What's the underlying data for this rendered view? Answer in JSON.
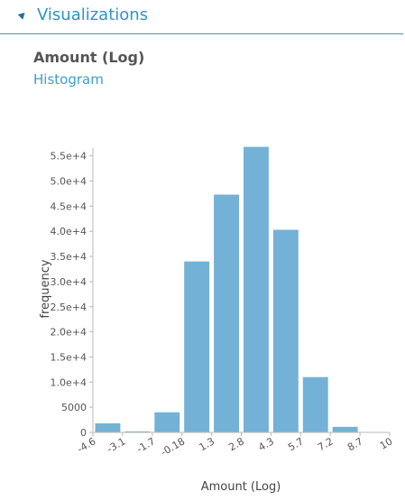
{
  "header": {
    "title": "Visualizations",
    "collapse_icon": "triangle-collapse-icon"
  },
  "chart_heading": "Amount (Log)",
  "chart_subheading": "Histogram",
  "colors": {
    "accent": "#2c94c8",
    "bar": "#73b2d6",
    "header_rule": "#3a97c9"
  },
  "chart_data": {
    "type": "bar",
    "xlabel": "Amount (Log)",
    "ylabel": "frequency",
    "ylim": [
      0,
      57000
    ],
    "y_ticks": [
      {
        "value": 0,
        "label": "0"
      },
      {
        "value": 5000,
        "label": "5000"
      },
      {
        "value": 10000,
        "label": "1.0e+4"
      },
      {
        "value": 15000,
        "label": "1.5e+4"
      },
      {
        "value": 20000,
        "label": "2.0e+4"
      },
      {
        "value": 25000,
        "label": "2.5e+4"
      },
      {
        "value": 30000,
        "label": "3.0e+4"
      },
      {
        "value": 35000,
        "label": "3.5e+4"
      },
      {
        "value": 40000,
        "label": "4.0e+4"
      },
      {
        "value": 45000,
        "label": "4.5e+4"
      },
      {
        "value": 50000,
        "label": "5.0e+4"
      },
      {
        "value": 55000,
        "label": "5.5e+4"
      }
    ],
    "x_tick_labels": [
      "-4.6",
      "-3.1",
      "-1.7",
      "-0.18",
      "1.3",
      "2.8",
      "4.3",
      "5.7",
      "7.2",
      "8.7",
      "10"
    ],
    "values": [
      1800,
      200,
      4000,
      34000,
      47300,
      56800,
      40300,
      11000,
      1100,
      30
    ]
  }
}
